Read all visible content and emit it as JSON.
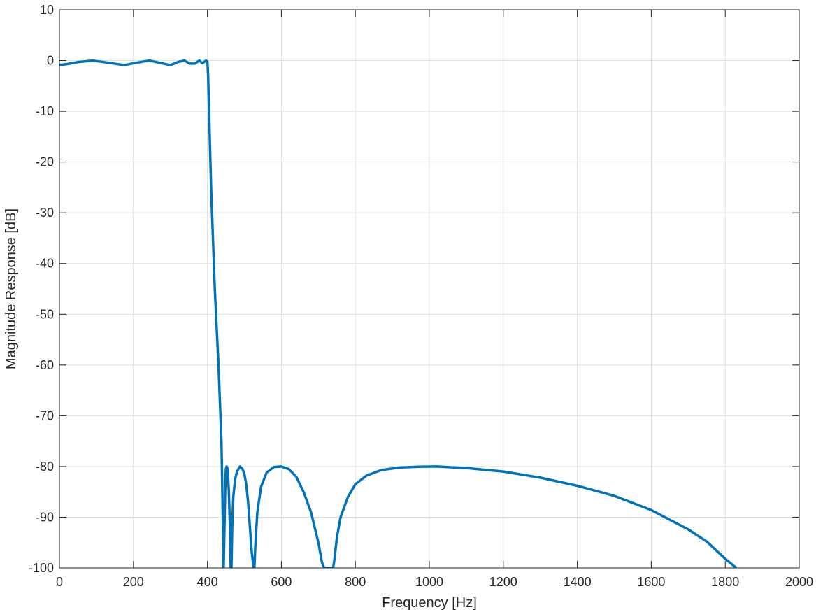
{
  "chart_data": {
    "type": "line",
    "xlabel": "Frequency [Hz]",
    "ylabel": "Magnitude Response [dB]",
    "xlim": [
      0,
      2000
    ],
    "ylim": [
      -100,
      10
    ],
    "xticks": [
      0,
      200,
      400,
      600,
      800,
      1000,
      1200,
      1400,
      1600,
      1800,
      2000
    ],
    "yticks": [
      10,
      0,
      -10,
      -20,
      -30,
      -40,
      -50,
      -60,
      -70,
      -80,
      -90,
      -100
    ],
    "grid": true,
    "series": [
      {
        "color": "#0072bd",
        "x": [
          0,
          20,
          50,
          90,
          130,
          175,
          210,
          243,
          275,
          300,
          320,
          338,
          352,
          366,
          378,
          386,
          391,
          396,
          400,
          402,
          410,
          420,
          430,
          438,
          444,
          448,
          450,
          452,
          455,
          458,
          461,
          463,
          465,
          467,
          470,
          475,
          480,
          488,
          495,
          500,
          505,
          510,
          515,
          520,
          525,
          527,
          530,
          535,
          545,
          560,
          580,
          600,
          620,
          640,
          660,
          680,
          700,
          710,
          716,
          720,
          740,
          744,
          750,
          760,
          780,
          800,
          830,
          870,
          920,
          970,
          1020,
          1100,
          1200,
          1300,
          1400,
          1500,
          1600,
          1700,
          1750,
          1800,
          1830
        ],
        "y": [
          -0.9,
          -0.7,
          -0.3,
          0.0,
          -0.4,
          -0.9,
          -0.4,
          0.0,
          -0.5,
          -0.9,
          -0.3,
          0.0,
          -0.6,
          -0.6,
          0.0,
          -0.5,
          -0.3,
          0.0,
          -0.2,
          -3,
          -25,
          -45,
          -60,
          -75,
          -100,
          -85,
          -80.5,
          -80,
          -80.5,
          -85,
          -92,
          -100,
          -100,
          -92,
          -86,
          -82.5,
          -81,
          -80,
          -80.5,
          -81.5,
          -83.5,
          -87,
          -92,
          -97,
          -100,
          -100,
          -95,
          -89,
          -84,
          -81.2,
          -80.1,
          -80,
          -80.5,
          -82,
          -85,
          -89,
          -95,
          -99,
          -100,
          -100,
          -100,
          -98,
          -94,
          -90,
          -86,
          -83.5,
          -81.8,
          -80.7,
          -80.2,
          -80.05,
          -80.0,
          -80.3,
          -81.0,
          -82.2,
          -83.8,
          -85.8,
          -88.6,
          -92.4,
          -94.8,
          -98.2,
          -100
        ]
      }
    ]
  }
}
